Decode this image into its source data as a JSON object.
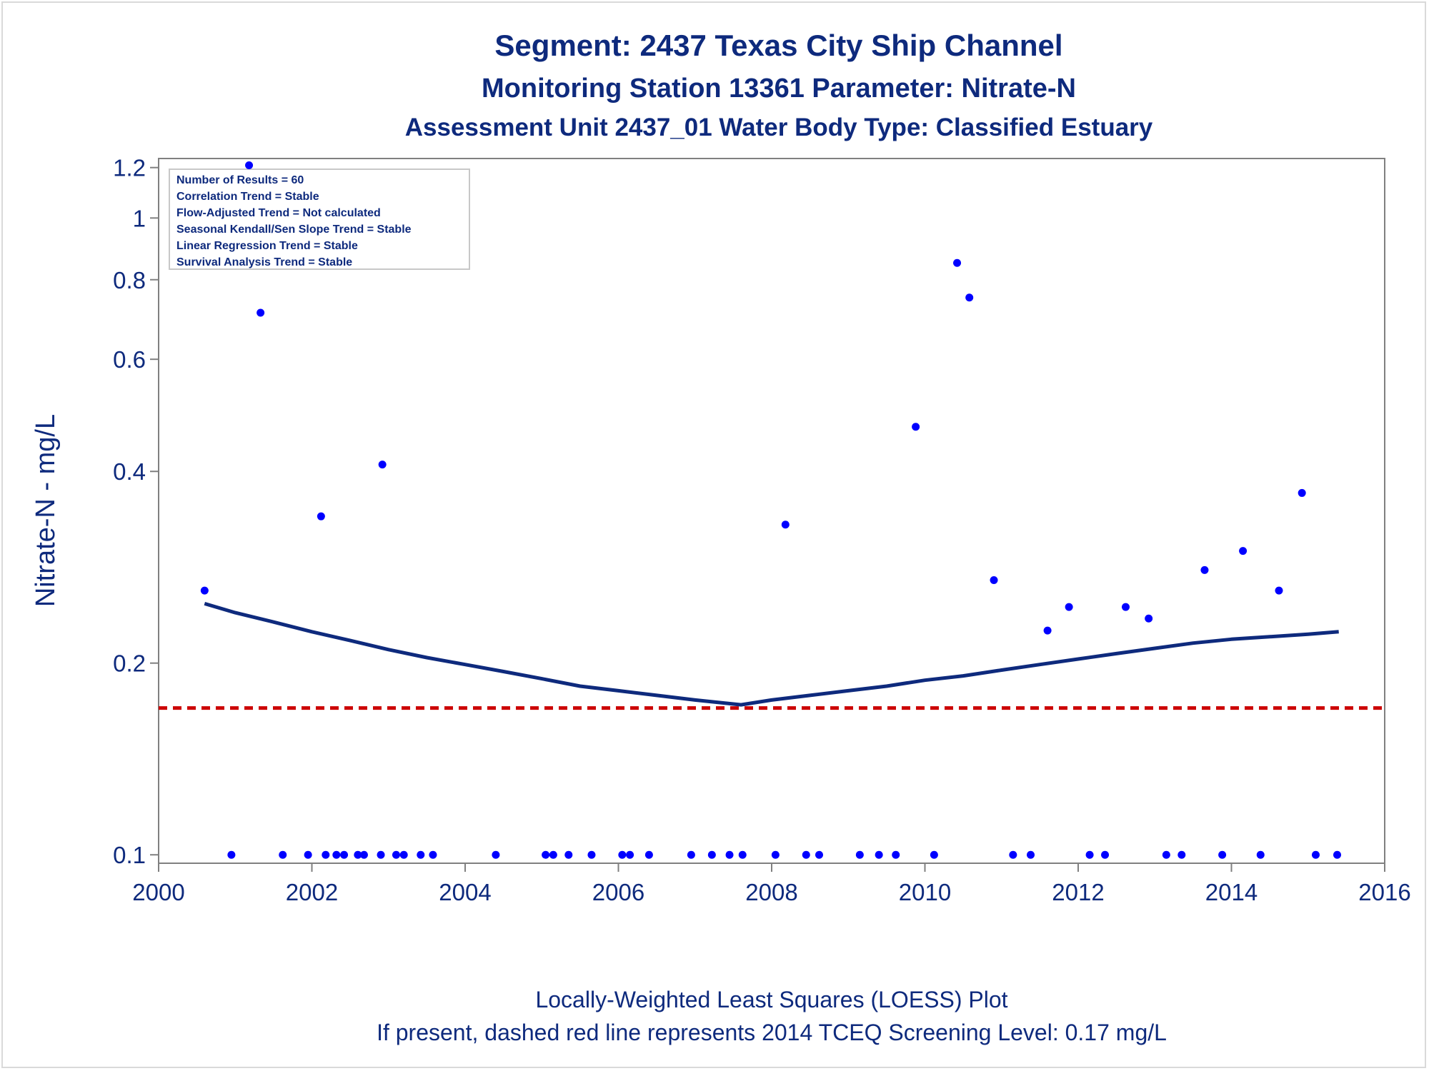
{
  "titles": {
    "line1": "Segment: 2437  Texas City Ship Channel",
    "line2": "Monitoring Station 13361 Parameter: Nitrate-N",
    "line3": "Assessment Unit 2437_01   Water Body Type: Classified Estuary"
  },
  "stats_box": {
    "lines": [
      "Number of Results = 60",
      "Correlation Trend = Stable",
      "Flow-Adjusted Trend = Not calculated",
      "Seasonal Kendall/Sen Slope Trend = Stable",
      "Linear Regression Trend = Stable",
      "Survival Analysis Trend = Stable"
    ]
  },
  "footnotes": {
    "line1": "Locally-Weighted Least Squares (LOESS) Plot",
    "line2": "If present, dashed red line represents 2014 TCEQ Screening Level: 0.17 mg/L"
  },
  "colors": {
    "text": "#0e2a7d",
    "points": "#0000ff",
    "loess": "#0e2a7d",
    "screening": "#cc0000",
    "axis": "#808080"
  },
  "chart_data": {
    "type": "scatter",
    "ylabel": "Nitrate-N - mg/L",
    "xlabel": "",
    "y_scale": "log",
    "xlim": [
      2000,
      2016
    ],
    "ylim": [
      0.097,
      1.24
    ],
    "x_ticks": [
      2000,
      2002,
      2004,
      2006,
      2008,
      2010,
      2012,
      2014,
      2016
    ],
    "y_ticks": [
      0.1,
      0.2,
      0.4,
      0.6,
      0.8,
      1,
      1.2
    ],
    "screening_level": 0.17,
    "points": [
      {
        "x": 2000.6,
        "y": 0.26
      },
      {
        "x": 2000.95,
        "y": 0.1
      },
      {
        "x": 2001.18,
        "y": 1.21
      },
      {
        "x": 2001.33,
        "y": 0.71
      },
      {
        "x": 2001.62,
        "y": 0.1
      },
      {
        "x": 2001.95,
        "y": 0.1
      },
      {
        "x": 2002.12,
        "y": 0.34
      },
      {
        "x": 2002.18,
        "y": 0.1
      },
      {
        "x": 2002.32,
        "y": 0.1
      },
      {
        "x": 2002.42,
        "y": 0.1
      },
      {
        "x": 2002.6,
        "y": 0.1
      },
      {
        "x": 2002.68,
        "y": 0.1
      },
      {
        "x": 2002.9,
        "y": 0.1
      },
      {
        "x": 2002.92,
        "y": 0.41
      },
      {
        "x": 2003.1,
        "y": 0.1
      },
      {
        "x": 2003.2,
        "y": 0.1
      },
      {
        "x": 2003.42,
        "y": 0.1
      },
      {
        "x": 2003.58,
        "y": 0.1
      },
      {
        "x": 2004.4,
        "y": 0.1
      },
      {
        "x": 2005.05,
        "y": 0.1
      },
      {
        "x": 2005.15,
        "y": 0.1
      },
      {
        "x": 2005.35,
        "y": 0.1
      },
      {
        "x": 2005.65,
        "y": 0.1
      },
      {
        "x": 2006.05,
        "y": 0.1
      },
      {
        "x": 2006.15,
        "y": 0.1
      },
      {
        "x": 2006.4,
        "y": 0.1
      },
      {
        "x": 2006.95,
        "y": 0.1
      },
      {
        "x": 2007.22,
        "y": 0.1
      },
      {
        "x": 2007.45,
        "y": 0.1
      },
      {
        "x": 2007.62,
        "y": 0.1
      },
      {
        "x": 2008.05,
        "y": 0.1
      },
      {
        "x": 2008.18,
        "y": 0.33
      },
      {
        "x": 2008.45,
        "y": 0.1
      },
      {
        "x": 2008.62,
        "y": 0.1
      },
      {
        "x": 2009.15,
        "y": 0.1
      },
      {
        "x": 2009.4,
        "y": 0.1
      },
      {
        "x": 2009.62,
        "y": 0.1
      },
      {
        "x": 2009.88,
        "y": 0.47
      },
      {
        "x": 2010.12,
        "y": 0.1
      },
      {
        "x": 2010.42,
        "y": 0.85
      },
      {
        "x": 2010.58,
        "y": 0.75
      },
      {
        "x": 2010.9,
        "y": 0.27
      },
      {
        "x": 2011.15,
        "y": 0.1
      },
      {
        "x": 2011.38,
        "y": 0.1
      },
      {
        "x": 2011.6,
        "y": 0.225
      },
      {
        "x": 2011.88,
        "y": 0.245
      },
      {
        "x": 2012.15,
        "y": 0.1
      },
      {
        "x": 2012.35,
        "y": 0.1
      },
      {
        "x": 2012.62,
        "y": 0.245
      },
      {
        "x": 2012.92,
        "y": 0.235
      },
      {
        "x": 2013.15,
        "y": 0.1
      },
      {
        "x": 2013.35,
        "y": 0.1
      },
      {
        "x": 2013.65,
        "y": 0.28
      },
      {
        "x": 2013.88,
        "y": 0.1
      },
      {
        "x": 2014.15,
        "y": 0.3
      },
      {
        "x": 2014.38,
        "y": 0.1
      },
      {
        "x": 2014.62,
        "y": 0.26
      },
      {
        "x": 2014.92,
        "y": 0.37
      },
      {
        "x": 2015.1,
        "y": 0.1
      },
      {
        "x": 2015.38,
        "y": 0.1
      }
    ],
    "loess": [
      {
        "x": 2000.6,
        "y": 0.248
      },
      {
        "x": 2001.0,
        "y": 0.24
      },
      {
        "x": 2001.5,
        "y": 0.232
      },
      {
        "x": 2002.0,
        "y": 0.224
      },
      {
        "x": 2002.5,
        "y": 0.217
      },
      {
        "x": 2003.0,
        "y": 0.21
      },
      {
        "x": 2003.5,
        "y": 0.204
      },
      {
        "x": 2004.0,
        "y": 0.199
      },
      {
        "x": 2004.5,
        "y": 0.194
      },
      {
        "x": 2005.0,
        "y": 0.189
      },
      {
        "x": 2005.5,
        "y": 0.184
      },
      {
        "x": 2006.0,
        "y": 0.181
      },
      {
        "x": 2006.5,
        "y": 0.178
      },
      {
        "x": 2007.0,
        "y": 0.175
      },
      {
        "x": 2007.6,
        "y": 0.172
      },
      {
        "x": 2008.0,
        "y": 0.175
      },
      {
        "x": 2008.5,
        "y": 0.178
      },
      {
        "x": 2009.0,
        "y": 0.181
      },
      {
        "x": 2009.5,
        "y": 0.184
      },
      {
        "x": 2010.0,
        "y": 0.188
      },
      {
        "x": 2010.5,
        "y": 0.191
      },
      {
        "x": 2011.0,
        "y": 0.195
      },
      {
        "x": 2011.5,
        "y": 0.199
      },
      {
        "x": 2012.0,
        "y": 0.203
      },
      {
        "x": 2012.5,
        "y": 0.207
      },
      {
        "x": 2013.0,
        "y": 0.211
      },
      {
        "x": 2013.5,
        "y": 0.215
      },
      {
        "x": 2014.0,
        "y": 0.218
      },
      {
        "x": 2014.5,
        "y": 0.22
      },
      {
        "x": 2015.0,
        "y": 0.222
      },
      {
        "x": 2015.4,
        "y": 0.224
      }
    ]
  }
}
